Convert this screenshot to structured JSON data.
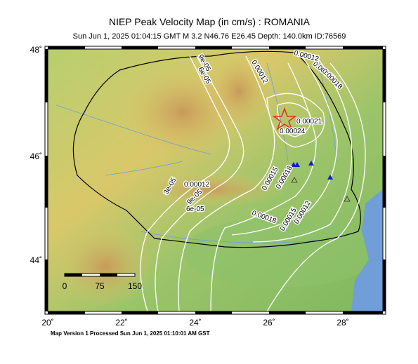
{
  "header": {
    "title": "NIEP Peak Velocity Map (in cm/s) : ROMANIA",
    "subtitle": "Sun Jun  1, 2025 01:04:15 GMT   M 3.2   N46.76 E26.45   Depth: 140.0km   ID:76569"
  },
  "map": {
    "lat_labels": [
      "48˚",
      "46˚",
      "44˚"
    ],
    "lon_labels": [
      "20˚",
      "22˚",
      "24˚",
      "26˚",
      "28˚"
    ],
    "scale_labels": [
      "0",
      "75",
      "150"
    ],
    "contour_labels": [
      "0.00012",
      "0.00015",
      "0.00018",
      "9e-05",
      "6e-05",
      "0.00012",
      "0.00021",
      "0.00024",
      "0.00015",
      "0.00018",
      "0.00012",
      "3e-05",
      "9e-05",
      "6e-05",
      "0.00018",
      "0.00015",
      "0.00012"
    ]
  },
  "footer": "Map Version 1 Processed Sun Jun  1, 2025 01:10:01 AM GST"
}
